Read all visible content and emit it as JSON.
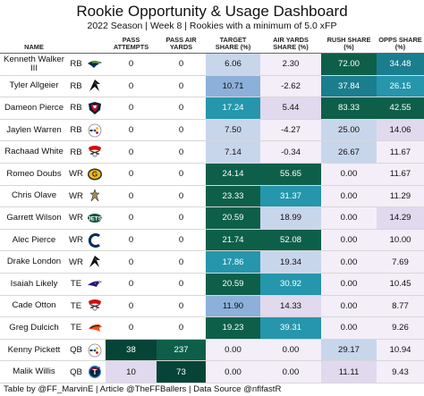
{
  "title": "Rookie Opportunity & Usage Dashboard",
  "subtitle": "2022 Season | Week 8 | Rookies with a minimum of 5.0 xFP",
  "columns": {
    "name": "NAME",
    "pass_attempts": "PASS ATTEMPTS",
    "pass_air_yards": "PASS AIR YARDS",
    "target_share": "TARGET SHARE (%)",
    "air_yards_share": "AIR YARDS SHARE (%)",
    "rush_share": "RUSH SHARE (%)",
    "opps_share": "OPPS SHARE (%)"
  },
  "rows": [
    {
      "name": "Kenneth Walker III",
      "pos": "RB",
      "team_icon": "seahawks-logo",
      "pass_attempts": "0",
      "pass_air_yards": "0",
      "target_share": "6.06",
      "air_yards_share": "2.30",
      "rush_share": "72.00",
      "opps_share": "34.48"
    },
    {
      "name": "Tyler Allgeier",
      "pos": "RB",
      "team_icon": "falcons-logo",
      "pass_attempts": "0",
      "pass_air_yards": "0",
      "target_share": "10.71",
      "air_yards_share": "-2.62",
      "rush_share": "37.84",
      "opps_share": "26.15"
    },
    {
      "name": "Dameon Pierce",
      "pos": "RB",
      "team_icon": "texans-logo",
      "pass_attempts": "0",
      "pass_air_yards": "0",
      "target_share": "17.24",
      "air_yards_share": "5.44",
      "rush_share": "83.33",
      "opps_share": "42.55"
    },
    {
      "name": "Jaylen Warren",
      "pos": "RB",
      "team_icon": "steelers-logo",
      "pass_attempts": "0",
      "pass_air_yards": "0",
      "target_share": "7.50",
      "air_yards_share": "-4.27",
      "rush_share": "25.00",
      "opps_share": "14.06"
    },
    {
      "name": "Rachaad White",
      "pos": "RB",
      "team_icon": "buccaneers-logo",
      "pass_attempts": "0",
      "pass_air_yards": "0",
      "target_share": "7.14",
      "air_yards_share": "-0.34",
      "rush_share": "26.67",
      "opps_share": "11.67"
    },
    {
      "name": "Romeo Doubs",
      "pos": "WR",
      "team_icon": "packers-logo",
      "pass_attempts": "0",
      "pass_air_yards": "0",
      "target_share": "24.14",
      "air_yards_share": "55.65",
      "rush_share": "0.00",
      "opps_share": "11.67"
    },
    {
      "name": "Chris Olave",
      "pos": "WR",
      "team_icon": "saints-logo",
      "pass_attempts": "0",
      "pass_air_yards": "0",
      "target_share": "23.33",
      "air_yards_share": "31.37",
      "rush_share": "0.00",
      "opps_share": "11.29"
    },
    {
      "name": "Garrett Wilson",
      "pos": "WR",
      "team_icon": "jets-logo",
      "pass_attempts": "0",
      "pass_air_yards": "0",
      "target_share": "20.59",
      "air_yards_share": "18.99",
      "rush_share": "0.00",
      "opps_share": "14.29"
    },
    {
      "name": "Alec Pierce",
      "pos": "WR",
      "team_icon": "colts-logo",
      "pass_attempts": "0",
      "pass_air_yards": "0",
      "target_share": "21.74",
      "air_yards_share": "52.08",
      "rush_share": "0.00",
      "opps_share": "10.00"
    },
    {
      "name": "Drake London",
      "pos": "WR",
      "team_icon": "falcons-logo",
      "pass_attempts": "0",
      "pass_air_yards": "0",
      "target_share": "17.86",
      "air_yards_share": "19.34",
      "rush_share": "0.00",
      "opps_share": "7.69"
    },
    {
      "name": "Isaiah Likely",
      "pos": "TE",
      "team_icon": "ravens-logo",
      "pass_attempts": "0",
      "pass_air_yards": "0",
      "target_share": "20.59",
      "air_yards_share": "30.92",
      "rush_share": "0.00",
      "opps_share": "10.45"
    },
    {
      "name": "Cade Otton",
      "pos": "TE",
      "team_icon": "buccaneers-logo",
      "pass_attempts": "0",
      "pass_air_yards": "0",
      "target_share": "11.90",
      "air_yards_share": "14.33",
      "rush_share": "0.00",
      "opps_share": "8.77"
    },
    {
      "name": "Greg Dulcich",
      "pos": "TE",
      "team_icon": "broncos-logo",
      "pass_attempts": "0",
      "pass_air_yards": "0",
      "target_share": "19.23",
      "air_yards_share": "39.31",
      "rush_share": "0.00",
      "opps_share": "9.26"
    },
    {
      "name": "Kenny Pickett",
      "pos": "QB",
      "team_icon": "steelers-logo",
      "pass_attempts": "38",
      "pass_air_yards": "237",
      "target_share": "0.00",
      "air_yards_share": "0.00",
      "rush_share": "29.17",
      "opps_share": "10.94"
    },
    {
      "name": "Malik Willis",
      "pos": "QB",
      "team_icon": "titans-logo",
      "pass_attempts": "10",
      "pass_air_yards": "73",
      "target_share": "0.00",
      "air_yards_share": "0.00",
      "rush_share": "11.11",
      "opps_share": "9.43"
    }
  ],
  "colors": {
    "header_rule": "#666666",
    "lavender_light": "#f3eef8",
    "lavender": "#e1d9ee",
    "blue_light": "#c8d6ec",
    "blue_mid": "#8cb0d9",
    "teal": "#2596ac",
    "teal_dark": "#1a7e8f",
    "green_dark": "#0d5f49",
    "green_deep": "#054436"
  },
  "footer": "Table by @FF_MarvinE | Article @TheFFBallers | Data Source @nflfastR"
}
